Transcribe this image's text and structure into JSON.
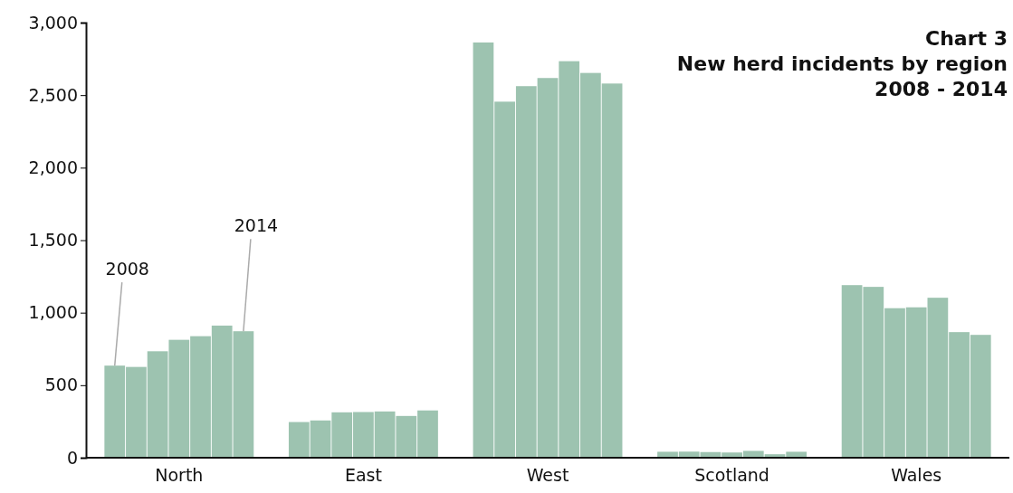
{
  "chart_data": {
    "type": "bar",
    "title": "Chart 3\nNew herd incidents by region\n2008 - 2014",
    "categories": [
      "North",
      "East",
      "West",
      "Scotland",
      "Wales"
    ],
    "series": [
      {
        "name": "2008",
        "color": "#9dc3b0",
        "values": [
          635,
          246,
          2863,
          41,
          1190
        ]
      },
      {
        "color": "#9dc3b0",
        "values": [
          626,
          257,
          2455,
          42,
          1178
        ]
      },
      {
        "color": "#9dc3b0",
        "values": [
          734,
          313,
          2562,
          39,
          1031
        ]
      },
      {
        "color": "#9dc3b0",
        "values": [
          813,
          315,
          2618,
          36,
          1037
        ]
      },
      {
        "color": "#9dc3b0",
        "values": [
          838,
          319,
          2734,
          47,
          1103
        ]
      },
      {
        "color": "#9dc3b0",
        "values": [
          911,
          288,
          2653,
          24,
          866
        ]
      },
      {
        "name": "2014",
        "color": "#9dc3b0",
        "values": [
          872,
          326,
          2580,
          41,
          847
        ]
      }
    ],
    "ylim": [
      0,
      3000
    ],
    "yticks": [
      0,
      {
        "value": 500,
        "label": "500"
      },
      {
        "value": 1000,
        "label": "1,000"
      },
      {
        "value": 1500,
        "label": "1,500"
      },
      {
        "value": 2000,
        "label": "2,000"
      },
      {
        "value": 2500,
        "label": "2,500"
      },
      {
        "value": 3000,
        "label": "3,000"
      }
    ],
    "grid": false
  }
}
